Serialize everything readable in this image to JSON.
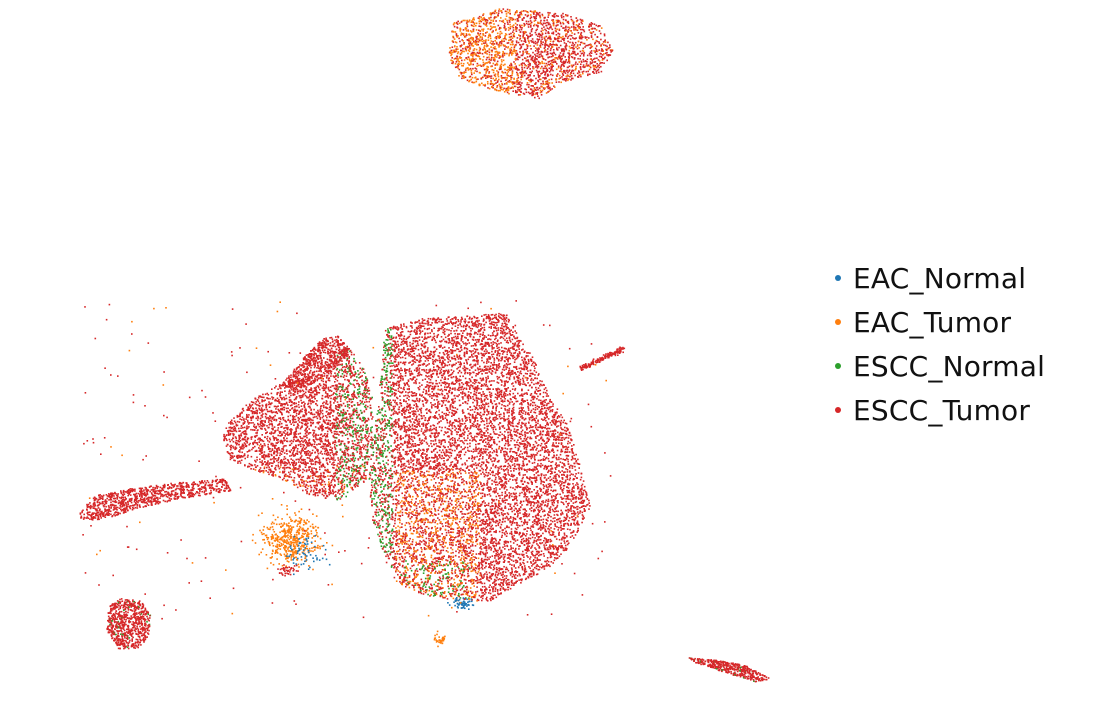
{
  "chart_data": {
    "type": "scatter",
    "title": "",
    "xlabel": "",
    "ylabel": "",
    "axes_visible": false,
    "grid": false,
    "legend_position": "right",
    "series": [
      {
        "name": "EAC_Normal",
        "color": "#1f77b4"
      },
      {
        "name": "EAC_Tumor",
        "color": "#ff7f0e"
      },
      {
        "name": "ESCC_Normal",
        "color": "#2ca02c"
      },
      {
        "name": "ESCC_Tumor",
        "color": "#d62728"
      }
    ]
  },
  "legend": {
    "items": [
      {
        "label": "EAC_Normal",
        "color": "#1f77b4"
      },
      {
        "label": "EAC_Tumor",
        "color": "#ff7f0e"
      },
      {
        "label": "ESCC_Normal",
        "color": "#2ca02c"
      },
      {
        "label": "ESCC_Tumor",
        "color": "#d62728"
      }
    ]
  }
}
